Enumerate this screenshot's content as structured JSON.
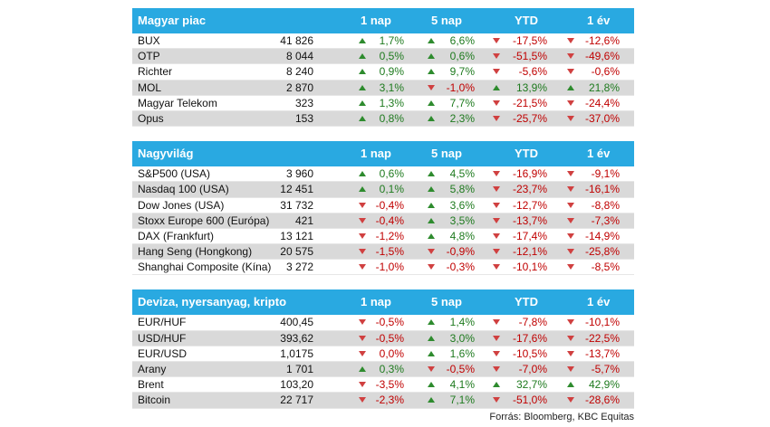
{
  "columns": [
    "1 nap",
    "5 nap",
    "YTD",
    "1 év"
  ],
  "sections": [
    {
      "title": "Magyar piac",
      "rows": [
        {
          "name": "BUX",
          "value": "41 826",
          "c": [
            "1,7%",
            "6,6%",
            "-17,5%",
            "-12,6%"
          ],
          "d": [
            "up",
            "up",
            "down",
            "down"
          ]
        },
        {
          "name": "OTP",
          "value": "8 044",
          "c": [
            "0,5%",
            "0,6%",
            "-51,5%",
            "-49,6%"
          ],
          "d": [
            "up",
            "up",
            "down",
            "down"
          ]
        },
        {
          "name": "Richter",
          "value": "8 240",
          "c": [
            "0,9%",
            "9,7%",
            "-5,6%",
            "-0,6%"
          ],
          "d": [
            "up",
            "up",
            "down",
            "down"
          ]
        },
        {
          "name": "MOL",
          "value": "2 870",
          "c": [
            "3,1%",
            "-1,0%",
            "13,9%",
            "21,8%"
          ],
          "d": [
            "up",
            "down",
            "up",
            "up"
          ]
        },
        {
          "name": "Magyar Telekom",
          "value": "323",
          "c": [
            "1,3%",
            "7,7%",
            "-21,5%",
            "-24,4%"
          ],
          "d": [
            "up",
            "up",
            "down",
            "down"
          ]
        },
        {
          "name": "Opus",
          "value": "153",
          "c": [
            "0,8%",
            "2,3%",
            "-25,7%",
            "-37,0%"
          ],
          "d": [
            "up",
            "up",
            "down",
            "down"
          ]
        }
      ]
    },
    {
      "title": "Nagyvilág",
      "rows": [
        {
          "name": "S&P500 (USA)",
          "value": "3 960",
          "c": [
            "0,6%",
            "4,5%",
            "-16,9%",
            "-9,1%"
          ],
          "d": [
            "up",
            "up",
            "down",
            "down"
          ]
        },
        {
          "name": "Nasdaq 100 (USA)",
          "value": "12 451",
          "c": [
            "0,1%",
            "5,8%",
            "-23,7%",
            "-16,1%"
          ],
          "d": [
            "up",
            "up",
            "down",
            "down"
          ]
        },
        {
          "name": "Dow Jones (USA)",
          "value": "31 732",
          "c": [
            "-0,4%",
            "3,6%",
            "-12,7%",
            "-8,8%"
          ],
          "d": [
            "down",
            "up",
            "down",
            "down"
          ]
        },
        {
          "name": "Stoxx Europe 600 (Európa)",
          "value": "421",
          "c": [
            "-0,4%",
            "3,5%",
            "-13,7%",
            "-7,3%"
          ],
          "d": [
            "down",
            "up",
            "down",
            "down"
          ]
        },
        {
          "name": "DAX (Frankfurt)",
          "value": "13 121",
          "c": [
            "-1,2%",
            "4,8%",
            "-17,4%",
            "-14,9%"
          ],
          "d": [
            "down",
            "up",
            "down",
            "down"
          ]
        },
        {
          "name": "Hang Seng (Hongkong)",
          "value": "20 575",
          "c": [
            "-1,5%",
            "-0,9%",
            "-12,1%",
            "-25,8%"
          ],
          "d": [
            "down",
            "down",
            "down",
            "down"
          ]
        },
        {
          "name": "Shanghai Composite (Kína)",
          "value": "3 272",
          "c": [
            "-1,0%",
            "-0,3%",
            "-10,1%",
            "-8,5%"
          ],
          "d": [
            "down",
            "down",
            "down",
            "down"
          ]
        }
      ]
    },
    {
      "title": "Deviza, nyersanyag, kripto",
      "rows": [
        {
          "name": "EUR/HUF",
          "value": "400,45",
          "c": [
            "-0,5%",
            "1,4%",
            "-7,8%",
            "-10,1%"
          ],
          "d": [
            "down",
            "up",
            "down",
            "down"
          ]
        },
        {
          "name": "USD/HUF",
          "value": "393,62",
          "c": [
            "-0,5%",
            "3,0%",
            "-17,6%",
            "-22,5%"
          ],
          "d": [
            "down",
            "up",
            "down",
            "down"
          ]
        },
        {
          "name": "EUR/USD",
          "value": "1,0175",
          "c": [
            "0,0%",
            "1,6%",
            "-10,5%",
            "-13,7%"
          ],
          "d": [
            "down",
            "up",
            "down",
            "down"
          ]
        },
        {
          "name": "Arany",
          "value": "1 701",
          "c": [
            "0,3%",
            "-0,5%",
            "-7,0%",
            "-5,7%"
          ],
          "d": [
            "up",
            "down",
            "down",
            "down"
          ]
        },
        {
          "name": "Brent",
          "value": "103,20",
          "c": [
            "-3,5%",
            "4,1%",
            "32,7%",
            "42,9%"
          ],
          "d": [
            "down",
            "up",
            "up",
            "up"
          ]
        },
        {
          "name": "Bitcoin",
          "value": "22 717",
          "c": [
            "-2,3%",
            "7,1%",
            "-51,0%",
            "-28,6%"
          ],
          "d": [
            "down",
            "up",
            "down",
            "down"
          ]
        }
      ]
    }
  ],
  "source": "Forrás: Bloomberg, KBC Equitas"
}
